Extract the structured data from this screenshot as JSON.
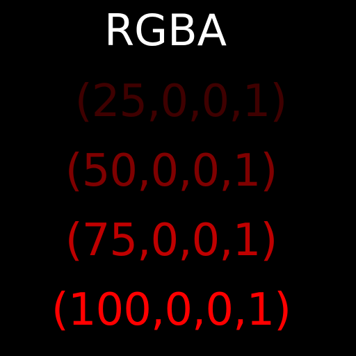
{
  "title": "RGBA",
  "lines": [
    {
      "text": "(25,0,0,1)",
      "color": "#3f0000"
    },
    {
      "text": "(50,0,0,1)",
      "color": "#7f0000"
    },
    {
      "text": "(75,0,0,1)",
      "color": "#bf0000"
    },
    {
      "text": "(100,0,0,1)",
      "color": "#ff0000"
    }
  ]
}
